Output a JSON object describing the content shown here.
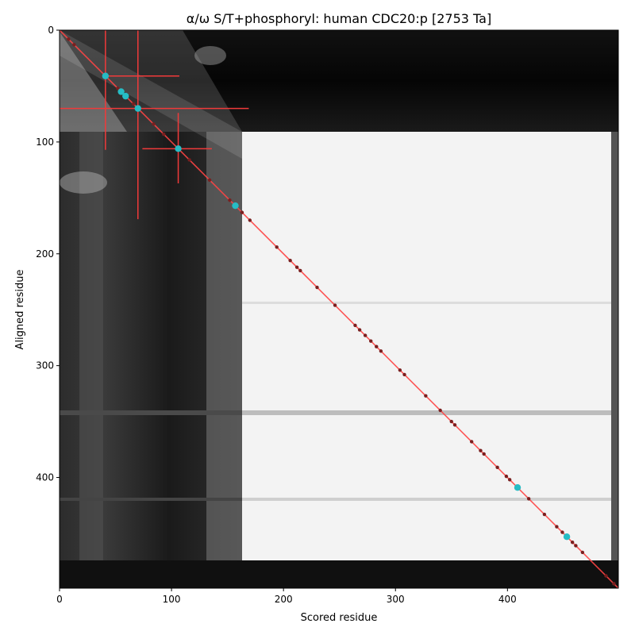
{
  "chart_data": {
    "type": "heatmap",
    "title": "α/ω S/T+phosphoryl: human CDC20:p [2753 Ta]",
    "xlabel": "Scored residue",
    "ylabel": "Aligned residue",
    "xlim": [
      0,
      499
    ],
    "ylim": [
      499,
      0
    ],
    "x_ticks": [
      0,
      100,
      200,
      300,
      400
    ],
    "y_ticks": [
      0,
      100,
      200,
      300,
      400
    ],
    "grid": false,
    "colormap": "greys (dark = low, light = high)",
    "diagonal_line": {
      "from": [
        0,
        0
      ],
      "to": [
        499,
        499
      ],
      "color": "#ff4444"
    },
    "highlighted_points": [
      {
        "x": 41,
        "y": 41,
        "xerr": [
          41,
          107
        ],
        "yerr": [
          0,
          107
        ]
      },
      {
        "x": 55,
        "y": 55
      },
      {
        "x": 59,
        "y": 59
      },
      {
        "x": 70,
        "y": 70,
        "xerr": [
          0,
          169
        ],
        "yerr": [
          0,
          169
        ]
      },
      {
        "x": 106,
        "y": 106,
        "xerr": [
          74,
          136
        ],
        "yerr": [
          74,
          137
        ]
      },
      {
        "x": 157,
        "y": 157
      },
      {
        "x": 409,
        "y": 409
      },
      {
        "x": 453,
        "y": 453
      }
    ],
    "minor_points": [
      8,
      13,
      52,
      66,
      84,
      93,
      116,
      134,
      152,
      163,
      170,
      194,
      206,
      212,
      215,
      230,
      246,
      264,
      268,
      273,
      278,
      283,
      287,
      304,
      308,
      327,
      340,
      350,
      353,
      368,
      376,
      379,
      391,
      399,
      402,
      419,
      433,
      444,
      449,
      458,
      461,
      467,
      488,
      495
    ],
    "point_colors": {
      "highlight": "#26bcc4",
      "minor": "#7a1f1f",
      "errorbar": "#f03a3a"
    }
  }
}
